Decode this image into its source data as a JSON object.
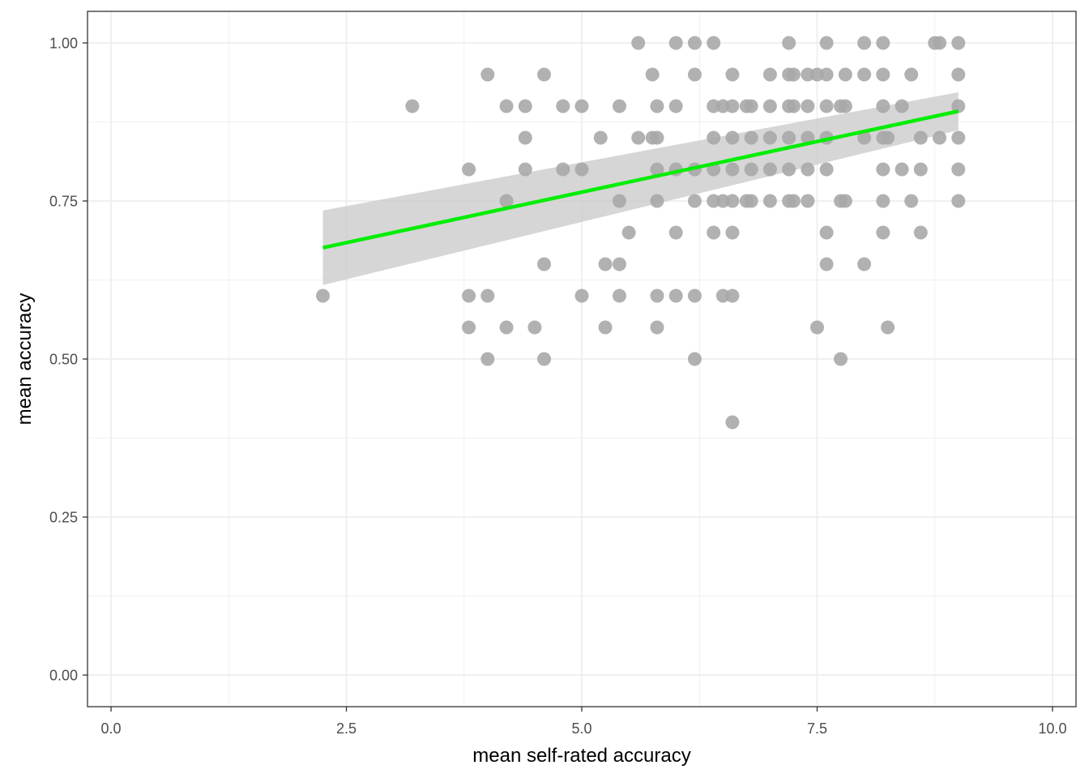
{
  "chart_data": {
    "type": "scatter",
    "title": "",
    "xlabel": "mean self-rated accuracy",
    "ylabel": "mean accuracy",
    "xlim": [
      -0.25,
      10.25
    ],
    "ylim": [
      -0.05,
      1.05
    ],
    "x_ticks": [
      0,
      2.5,
      5,
      7.5,
      10
    ],
    "x_tick_labels": [
      "0.0",
      "2.5",
      "5.0",
      "7.5",
      "10.0"
    ],
    "y_ticks": [
      0,
      0.25,
      0.5,
      0.75,
      1
    ],
    "y_tick_labels": [
      "0.00",
      "0.25",
      "0.50",
      "0.75",
      "1.00"
    ],
    "grid": true,
    "legend": "none",
    "colors": {
      "points": "#a9a9a9",
      "fit_line": "#00ee00",
      "confidence_band": "#cccccc",
      "grid": "#ebebeb",
      "panel_border": "#333333"
    },
    "points": [
      {
        "x": 2.25,
        "y": 0.6
      },
      {
        "x": 3.2,
        "y": 0.9
      },
      {
        "x": 3.8,
        "y": 0.8
      },
      {
        "x": 3.8,
        "y": 0.6
      },
      {
        "x": 3.8,
        "y": 0.55
      },
      {
        "x": 4.0,
        "y": 0.95
      },
      {
        "x": 4.0,
        "y": 0.6
      },
      {
        "x": 4.0,
        "y": 0.5
      },
      {
        "x": 4.2,
        "y": 0.9
      },
      {
        "x": 4.2,
        "y": 0.75
      },
      {
        "x": 4.2,
        "y": 0.55
      },
      {
        "x": 4.4,
        "y": 0.9
      },
      {
        "x": 4.4,
        "y": 0.85
      },
      {
        "x": 4.4,
        "y": 0.8
      },
      {
        "x": 4.6,
        "y": 0.95
      },
      {
        "x": 4.6,
        "y": 0.65
      },
      {
        "x": 4.6,
        "y": 0.5
      },
      {
        "x": 4.5,
        "y": 0.55
      },
      {
        "x": 4.8,
        "y": 0.9
      },
      {
        "x": 4.8,
        "y": 0.8
      },
      {
        "x": 5.0,
        "y": 0.9
      },
      {
        "x": 5.0,
        "y": 0.8
      },
      {
        "x": 5.0,
        "y": 0.6
      },
      {
        "x": 5.2,
        "y": 0.85
      },
      {
        "x": 5.25,
        "y": 0.65
      },
      {
        "x": 5.25,
        "y": 0.55
      },
      {
        "x": 5.4,
        "y": 0.9
      },
      {
        "x": 5.4,
        "y": 0.75
      },
      {
        "x": 5.4,
        "y": 0.65
      },
      {
        "x": 5.4,
        "y": 0.6
      },
      {
        "x": 5.5,
        "y": 0.7
      },
      {
        "x": 5.6,
        "y": 1.0
      },
      {
        "x": 5.6,
        "y": 0.85
      },
      {
        "x": 5.75,
        "y": 0.95
      },
      {
        "x": 5.75,
        "y": 0.85
      },
      {
        "x": 5.8,
        "y": 0.9
      },
      {
        "x": 5.8,
        "y": 0.85
      },
      {
        "x": 5.8,
        "y": 0.8
      },
      {
        "x": 5.8,
        "y": 0.75
      },
      {
        "x": 5.8,
        "y": 0.6
      },
      {
        "x": 5.8,
        "y": 0.55
      },
      {
        "x": 6.0,
        "y": 1.0
      },
      {
        "x": 6.0,
        "y": 0.9
      },
      {
        "x": 6.0,
        "y": 0.8
      },
      {
        "x": 6.0,
        "y": 0.7
      },
      {
        "x": 6.0,
        "y": 0.6
      },
      {
        "x": 6.2,
        "y": 1.0
      },
      {
        "x": 6.2,
        "y": 0.95
      },
      {
        "x": 6.2,
        "y": 0.8
      },
      {
        "x": 6.2,
        "y": 0.75
      },
      {
        "x": 6.2,
        "y": 0.6
      },
      {
        "x": 6.2,
        "y": 0.5
      },
      {
        "x": 6.4,
        "y": 1.0
      },
      {
        "x": 6.4,
        "y": 0.9
      },
      {
        "x": 6.4,
        "y": 0.85
      },
      {
        "x": 6.4,
        "y": 0.8
      },
      {
        "x": 6.4,
        "y": 0.75
      },
      {
        "x": 6.4,
        "y": 0.7
      },
      {
        "x": 6.5,
        "y": 0.9
      },
      {
        "x": 6.5,
        "y": 0.75
      },
      {
        "x": 6.5,
        "y": 0.6
      },
      {
        "x": 6.6,
        "y": 0.95
      },
      {
        "x": 6.6,
        "y": 0.9
      },
      {
        "x": 6.6,
        "y": 0.85
      },
      {
        "x": 6.6,
        "y": 0.8
      },
      {
        "x": 6.6,
        "y": 0.75
      },
      {
        "x": 6.6,
        "y": 0.7
      },
      {
        "x": 6.6,
        "y": 0.6
      },
      {
        "x": 6.6,
        "y": 0.4
      },
      {
        "x": 6.75,
        "y": 0.9
      },
      {
        "x": 6.75,
        "y": 0.75
      },
      {
        "x": 6.8,
        "y": 0.9
      },
      {
        "x": 6.8,
        "y": 0.85
      },
      {
        "x": 6.8,
        "y": 0.8
      },
      {
        "x": 6.8,
        "y": 0.75
      },
      {
        "x": 7.0,
        "y": 0.95
      },
      {
        "x": 7.0,
        "y": 0.9
      },
      {
        "x": 7.0,
        "y": 0.85
      },
      {
        "x": 7.0,
        "y": 0.8
      },
      {
        "x": 7.0,
        "y": 0.75
      },
      {
        "x": 7.2,
        "y": 1.0
      },
      {
        "x": 7.2,
        "y": 0.95
      },
      {
        "x": 7.2,
        "y": 0.9
      },
      {
        "x": 7.2,
        "y": 0.85
      },
      {
        "x": 7.2,
        "y": 0.8
      },
      {
        "x": 7.2,
        "y": 0.75
      },
      {
        "x": 7.25,
        "y": 0.95
      },
      {
        "x": 7.25,
        "y": 0.9
      },
      {
        "x": 7.25,
        "y": 0.75
      },
      {
        "x": 7.4,
        "y": 0.95
      },
      {
        "x": 7.4,
        "y": 0.9
      },
      {
        "x": 7.4,
        "y": 0.85
      },
      {
        "x": 7.4,
        "y": 0.8
      },
      {
        "x": 7.4,
        "y": 0.75
      },
      {
        "x": 7.5,
        "y": 0.95
      },
      {
        "x": 7.5,
        "y": 0.55
      },
      {
        "x": 7.6,
        "y": 1.0
      },
      {
        "x": 7.6,
        "y": 0.95
      },
      {
        "x": 7.6,
        "y": 0.9
      },
      {
        "x": 7.6,
        "y": 0.85
      },
      {
        "x": 7.6,
        "y": 0.8
      },
      {
        "x": 7.6,
        "y": 0.7
      },
      {
        "x": 7.6,
        "y": 0.65
      },
      {
        "x": 7.75,
        "y": 0.9
      },
      {
        "x": 7.75,
        "y": 0.75
      },
      {
        "x": 7.75,
        "y": 0.5
      },
      {
        "x": 7.8,
        "y": 0.95
      },
      {
        "x": 7.8,
        "y": 0.9
      },
      {
        "x": 7.8,
        "y": 0.75
      },
      {
        "x": 8.0,
        "y": 1.0
      },
      {
        "x": 8.0,
        "y": 0.95
      },
      {
        "x": 8.0,
        "y": 0.85
      },
      {
        "x": 8.0,
        "y": 0.65
      },
      {
        "x": 8.2,
        "y": 1.0
      },
      {
        "x": 8.2,
        "y": 0.95
      },
      {
        "x": 8.2,
        "y": 0.9
      },
      {
        "x": 8.2,
        "y": 0.85
      },
      {
        "x": 8.2,
        "y": 0.8
      },
      {
        "x": 8.2,
        "y": 0.75
      },
      {
        "x": 8.2,
        "y": 0.7
      },
      {
        "x": 8.25,
        "y": 0.85
      },
      {
        "x": 8.25,
        "y": 0.55
      },
      {
        "x": 8.4,
        "y": 0.9
      },
      {
        "x": 8.4,
        "y": 0.8
      },
      {
        "x": 8.5,
        "y": 0.95
      },
      {
        "x": 8.5,
        "y": 0.75
      },
      {
        "x": 8.6,
        "y": 0.85
      },
      {
        "x": 8.6,
        "y": 0.8
      },
      {
        "x": 8.6,
        "y": 0.7
      },
      {
        "x": 8.75,
        "y": 1.0
      },
      {
        "x": 8.8,
        "y": 1.0
      },
      {
        "x": 8.8,
        "y": 0.85
      },
      {
        "x": 9.0,
        "y": 1.0
      },
      {
        "x": 9.0,
        "y": 0.95
      },
      {
        "x": 9.0,
        "y": 0.9
      },
      {
        "x": 9.0,
        "y": 0.85
      },
      {
        "x": 9.0,
        "y": 0.8
      },
      {
        "x": 9.0,
        "y": 0.75
      }
    ],
    "fit_line": {
      "method": "linear",
      "x": [
        2.25,
        9.0
      ],
      "y": [
        0.676,
        0.892
      ]
    },
    "confidence_band": {
      "x": [
        2.25,
        9.0
      ],
      "lower": [
        0.617,
        0.862
      ],
      "upper": [
        0.735,
        0.922
      ]
    }
  }
}
